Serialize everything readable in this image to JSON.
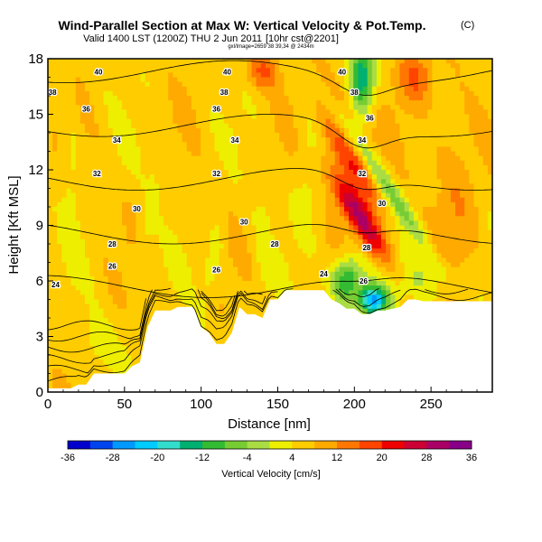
{
  "header": {
    "title": "Wind-Parallel Section at Max W: Vertical Velocity & Pot.Temp.",
    "copyright": "(C)",
    "valid_line": "Valid 1400 LST (1200Z) THU 2 Jun 2011",
    "valid_extra": "[10hr cst@2201]",
    "tiny_line": "gxl/lmage=2659 38 39,34 @ 2434m"
  },
  "chart_data": {
    "type": "heatmap",
    "title": "Wind-Parallel Section at Max W: Vertical Velocity & Pot.Temp.",
    "xlabel": "Distance [nm]",
    "ylabel": "Height [Kft MSL]",
    "xlim": [
      0,
      290
    ],
    "ylim": [
      0,
      18
    ],
    "x_ticks": [
      "0",
      "50",
      "100",
      "150",
      "200",
      "250"
    ],
    "x_tick_values": [
      0,
      50,
      100,
      150,
      200,
      250
    ],
    "y_ticks": [
      "0",
      "3",
      "6",
      "9",
      "12",
      "15",
      "18"
    ],
    "y_tick_values": [
      0,
      3,
      6,
      9,
      12,
      15,
      18
    ],
    "colorbar": {
      "label": "Vertical Velocity [cm/s]",
      "tick_labels": [
        "-36",
        "-28",
        "-20",
        "-12",
        "-4",
        "4",
        "12",
        "20",
        "28",
        "36"
      ],
      "tick_values": [
        -36,
        -28,
        -20,
        -12,
        -4,
        4,
        12,
        20,
        28,
        36
      ],
      "level_colors": [
        "#0000cc",
        "#0044ee",
        "#0099ff",
        "#00ccff",
        "#33ddcc",
        "#00b070",
        "#33bb33",
        "#77cc33",
        "#aadd44",
        "#eeee00",
        "#ffcc00",
        "#ffaa00",
        "#ff7700",
        "#ff4400",
        "#ee0000",
        "#cc0033",
        "#aa0066",
        "#880088"
      ]
    },
    "terrain_kft": [
      {
        "x": 0,
        "h": 0.2
      },
      {
        "x": 5,
        "h": 0.2
      },
      {
        "x": 10,
        "h": 0.2
      },
      {
        "x": 15,
        "h": 0.2
      },
      {
        "x": 20,
        "h": 0.4
      },
      {
        "x": 25,
        "h": 0.4
      },
      {
        "x": 30,
        "h": 1.0
      },
      {
        "x": 45,
        "h": 1.0
      },
      {
        "x": 50,
        "h": 1.0
      },
      {
        "x": 55,
        "h": 1.4
      },
      {
        "x": 60,
        "h": 1.6
      },
      {
        "x": 65,
        "h": 3.5
      },
      {
        "x": 70,
        "h": 4.4
      },
      {
        "x": 75,
        "h": 4.4
      },
      {
        "x": 80,
        "h": 4.4
      },
      {
        "x": 85,
        "h": 4.6
      },
      {
        "x": 95,
        "h": 4.6
      },
      {
        "x": 100,
        "h": 3.5
      },
      {
        "x": 105,
        "h": 3.2
      },
      {
        "x": 110,
        "h": 2.6
      },
      {
        "x": 115,
        "h": 2.6
      },
      {
        "x": 120,
        "h": 3.2
      },
      {
        "x": 125,
        "h": 4.6
      },
      {
        "x": 130,
        "h": 4.2
      },
      {
        "x": 135,
        "h": 4.2
      },
      {
        "x": 140,
        "h": 4.0
      },
      {
        "x": 145,
        "h": 5.0
      },
      {
        "x": 150,
        "h": 5.0
      },
      {
        "x": 155,
        "h": 5.5
      },
      {
        "x": 175,
        "h": 5.5
      },
      {
        "x": 180,
        "h": 5.5
      },
      {
        "x": 185,
        "h": 5.0
      },
      {
        "x": 190,
        "h": 4.8
      },
      {
        "x": 195,
        "h": 4.5
      },
      {
        "x": 200,
        "h": 4.5
      },
      {
        "x": 205,
        "h": 4.2
      },
      {
        "x": 210,
        "h": 4.2
      },
      {
        "x": 215,
        "h": 4.4
      },
      {
        "x": 220,
        "h": 4.4
      },
      {
        "x": 225,
        "h": 4.5
      },
      {
        "x": 230,
        "h": 4.6
      },
      {
        "x": 235,
        "h": 5.0
      },
      {
        "x": 240,
        "h": 5.0
      },
      {
        "x": 245,
        "h": 4.9
      },
      {
        "x": 255,
        "h": 4.9
      },
      {
        "x": 270,
        "h": 4.9
      },
      {
        "x": 280,
        "h": 4.9
      },
      {
        "x": 290,
        "h": 4.9
      }
    ],
    "w_features": [
      {
        "x": 203,
        "z": 9.5,
        "sx": 9,
        "sz": 2.5,
        "w": 24,
        "tilt": -7
      },
      {
        "x": 198,
        "z": 12.5,
        "sx": 10,
        "sz": 2.5,
        "w": 14,
        "tilt": -7
      },
      {
        "x": 192,
        "z": 15.5,
        "sx": 12,
        "sz": 2.5,
        "w": 8,
        "tilt": -6
      },
      {
        "x": 218,
        "z": 11.5,
        "sx": 7,
        "sz": 5.5,
        "w": -12,
        "tilt": -8
      },
      {
        "x": 205,
        "z": 17.0,
        "sx": 8,
        "sz": 2,
        "w": -22,
        "tilt": 0
      },
      {
        "x": 195,
        "z": 6.0,
        "sx": 10,
        "sz": 1.3,
        "w": -20,
        "tilt": 0
      },
      {
        "x": 212,
        "z": 4.9,
        "sx": 9,
        "sz": 0.8,
        "w": -30,
        "tilt": 0
      },
      {
        "x": 245,
        "z": 6.0,
        "sx": 25,
        "sz": 1.3,
        "w": -6,
        "tilt": 0
      },
      {
        "x": 108,
        "z": 7.0,
        "sx": 5,
        "sz": 2.5,
        "w": -5,
        "tilt": 2
      },
      {
        "x": 15,
        "z": 12.0,
        "sx": 6,
        "sz": 4,
        "w": -4,
        "tilt": 0
      },
      {
        "x": 65,
        "z": 9.0,
        "sx": 5,
        "sz": 4,
        "w": -4,
        "tilt": 2
      },
      {
        "x": 140,
        "z": 8.0,
        "sx": 6,
        "sz": 4,
        "w": -3,
        "tilt": 0
      },
      {
        "x": 170,
        "z": 12.5,
        "sx": 8,
        "sz": 4,
        "w": -4,
        "tilt": 0
      },
      {
        "x": 240,
        "z": 17.0,
        "sx": 12,
        "sz": 1.5,
        "w": 10,
        "tilt": 0
      },
      {
        "x": 140,
        "z": 17.3,
        "sx": 10,
        "sz": 1,
        "w": 10,
        "tilt": 0
      },
      {
        "x": 30,
        "z": 2.5,
        "sx": 12,
        "sz": 1.5,
        "w": -4,
        "tilt": 0
      },
      {
        "x": 265,
        "z": 10.0,
        "sx": 15,
        "sz": 6,
        "w": 5,
        "tilt": 0
      }
    ],
    "theta_levels": [
      {
        "value": 24,
        "label": "24",
        "label_x": 5
      },
      {
        "value": 26,
        "label": "26",
        "label_x": 42
      },
      {
        "value": 28,
        "label": "28",
        "label_x": 42
      },
      {
        "value": 30,
        "label": "30",
        "label_x": 58
      },
      {
        "value": 32,
        "label": "32",
        "label_x": 32
      },
      {
        "value": 34,
        "label": "34",
        "label_x": 45
      },
      {
        "value": 36,
        "label": "36",
        "label_x": 25
      },
      {
        "value": 38,
        "label": "38",
        "label_x": 3
      },
      {
        "value": 40,
        "label": "40",
        "label_x": 33
      }
    ],
    "contour_labels": [
      {
        "text": "40",
        "x": 33,
        "z": 17.3
      },
      {
        "text": "38",
        "x": 3,
        "z": 16.2
      },
      {
        "text": "36",
        "x": 25,
        "z": 15.3
      },
      {
        "text": "34",
        "x": 45,
        "z": 13.6
      },
      {
        "text": "32",
        "x": 32,
        "z": 11.8
      },
      {
        "text": "30",
        "x": 58,
        "z": 9.9
      },
      {
        "text": "28",
        "x": 42,
        "z": 8.0
      },
      {
        "text": "26",
        "x": 42,
        "z": 6.8
      },
      {
        "text": "24",
        "x": 5,
        "z": 5.8
      },
      {
        "text": "40",
        "x": 117,
        "z": 17.3
      },
      {
        "text": "38",
        "x": 115,
        "z": 16.2
      },
      {
        "text": "36",
        "x": 110,
        "z": 15.3
      },
      {
        "text": "34",
        "x": 122,
        "z": 13.6
      },
      {
        "text": "32",
        "x": 110,
        "z": 11.8
      },
      {
        "text": "30",
        "x": 128,
        "z": 9.2
      },
      {
        "text": "28",
        "x": 148,
        "z": 8.0
      },
      {
        "text": "26",
        "x": 110,
        "z": 6.6
      },
      {
        "text": "24",
        "x": 180,
        "z": 6.4
      },
      {
        "text": "26",
        "x": 206,
        "z": 6.0
      },
      {
        "text": "28",
        "x": 208,
        "z": 7.8
      },
      {
        "text": "30",
        "x": 218,
        "z": 10.2
      },
      {
        "text": "32",
        "x": 205,
        "z": 11.8
      },
      {
        "text": "34",
        "x": 205,
        "z": 13.6
      },
      {
        "text": "36",
        "x": 210,
        "z": 14.8
      },
      {
        "text": "38",
        "x": 200,
        "z": 16.2
      },
      {
        "text": "40",
        "x": 192,
        "z": 17.3
      }
    ]
  }
}
